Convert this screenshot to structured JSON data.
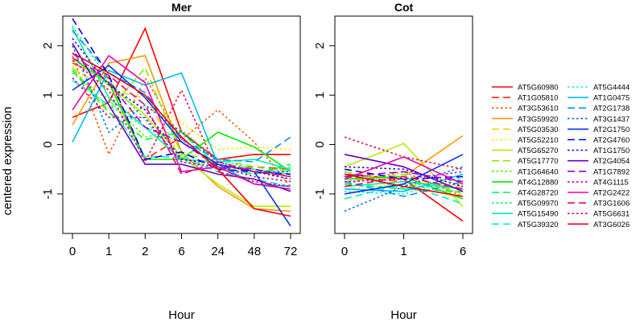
{
  "ylabel": "centered expression",
  "chart_data": [
    {
      "type": "line",
      "title": "Mer",
      "xlabel": "Hour",
      "ylabel": "centered expression",
      "categories": [
        "0",
        "1",
        "2",
        "6",
        "24",
        "48",
        "72"
      ],
      "ylim": [
        -1.8,
        2.6
      ],
      "yticks": [
        -1,
        0,
        1,
        2
      ],
      "grid": false,
      "series": [
        {
          "name": "AT5G60980",
          "color": "#ff0000",
          "dash": "solid",
          "values": [
            0.55,
            0.85,
            2.35,
            0.25,
            -0.3,
            -0.2,
            -0.2
          ]
        },
        {
          "name": "AT1G05810",
          "color": "#ff2a00",
          "dash": "longdash",
          "values": [
            1.65,
            1.35,
            -0.3,
            0.15,
            -0.5,
            -0.45,
            -0.5
          ]
        },
        {
          "name": "AT3G53610",
          "color": "#ff5500",
          "dash": "dotted",
          "values": [
            1.8,
            -0.2,
            1.35,
            0.1,
            0.7,
            0.05,
            -0.85
          ]
        },
        {
          "name": "AT3G59920",
          "color": "#ff9900",
          "dash": "solid",
          "values": [
            0.4,
            1.65,
            1.8,
            -0.15,
            -0.85,
            -1.3,
            -1.35
          ]
        },
        {
          "name": "AT5G03530",
          "color": "#ffcc00",
          "dash": "longdash",
          "values": [
            1.55,
            1.1,
            0.95,
            -0.3,
            -0.4,
            -0.55,
            -0.65
          ]
        },
        {
          "name": "AT5G52210",
          "color": "#eeee00",
          "dash": "dotted",
          "values": [
            1.6,
            0.55,
            0.75,
            0.45,
            -0.1,
            -0.05,
            -0.1
          ]
        },
        {
          "name": "AT5G65270",
          "color": "#b3ee00",
          "dash": "solid",
          "values": [
            1.75,
            1.2,
            0.6,
            -0.25,
            -0.8,
            -1.25,
            -1.25
          ]
        },
        {
          "name": "AT5G17770",
          "color": "#80ee00",
          "dash": "longdash",
          "values": [
            1.55,
            0.7,
            1.55,
            -0.2,
            -0.3,
            -0.45,
            -0.55
          ]
        },
        {
          "name": "AT1G64640",
          "color": "#55ee00",
          "dash": "dotted",
          "values": [
            1.45,
            0.9,
            0.15,
            0.3,
            -0.35,
            -0.5,
            -0.6
          ]
        },
        {
          "name": "AT4G12880",
          "color": "#00ee00",
          "dash": "solid",
          "values": [
            1.75,
            1.25,
            -0.3,
            -0.3,
            0.25,
            -0.05,
            -0.55
          ]
        },
        {
          "name": "AT4G28720",
          "color": "#00ee44",
          "dash": "longdash",
          "values": [
            1.5,
            0.65,
            0.1,
            0.25,
            -0.45,
            -0.6,
            -0.4
          ]
        },
        {
          "name": "AT5G09970",
          "color": "#00ee77",
          "dash": "dotted",
          "values": [
            2.4,
            1.3,
            0.5,
            -0.35,
            -0.5,
            -0.6,
            -0.45
          ]
        },
        {
          "name": "AT5G15490",
          "color": "#00eeaa",
          "dash": "solid",
          "values": [
            2.35,
            0.95,
            0.35,
            -0.3,
            -0.35,
            -0.3,
            -0.5
          ]
        },
        {
          "name": "AT5G39320",
          "color": "#00eecc",
          "dash": "longdash",
          "values": [
            1.3,
            0.8,
            -0.25,
            -0.25,
            -0.55,
            -0.7,
            -0.85
          ]
        },
        {
          "name": "AT5G4444",
          "color": "#00eeee",
          "dash": "dotted",
          "values": [
            2.05,
            0.8,
            0.35,
            0.05,
            -0.3,
            -0.5,
            -0.6
          ]
        },
        {
          "name": "AT1G0475",
          "color": "#00bbee",
          "dash": "solid",
          "values": [
            0.05,
            1.5,
            1.2,
            1.45,
            -0.4,
            -0.8,
            -0.85
          ]
        },
        {
          "name": "AT2G1738",
          "color": "#0099ee",
          "dash": "longdash",
          "values": [
            2.3,
            1.45,
            1.05,
            0.1,
            -0.3,
            -0.35,
            0.15
          ]
        },
        {
          "name": "AT3G1437",
          "color": "#0066ee",
          "dash": "dotted",
          "values": [
            2.0,
            0.25,
            0.8,
            0.25,
            -0.35,
            -0.55,
            -0.55
          ]
        },
        {
          "name": "AT2G1750",
          "color": "#0033ee",
          "dash": "solid",
          "values": [
            1.1,
            1.6,
            0.95,
            0.05,
            -0.4,
            -0.55,
            -1.65
          ]
        },
        {
          "name": "AT2G4760",
          "color": "#0000dd",
          "dash": "longdash",
          "values": [
            2.55,
            1.4,
            -0.3,
            -0.15,
            -0.5,
            -0.55,
            -0.6
          ]
        },
        {
          "name": "AT1G1750",
          "color": "#3300cc",
          "dash": "dotted",
          "values": [
            2.15,
            1.2,
            0.7,
            -0.3,
            -0.4,
            -0.55,
            -0.7
          ]
        },
        {
          "name": "AT2G4054",
          "color": "#6600cc",
          "dash": "solid",
          "values": [
            2.05,
            0.8,
            -0.4,
            -0.4,
            -0.6,
            -0.7,
            -0.95
          ]
        },
        {
          "name": "AT1G7892",
          "color": "#9900cc",
          "dash": "longdash",
          "values": [
            1.85,
            1.25,
            0.35,
            0.05,
            -0.45,
            -0.5,
            -0.65
          ]
        },
        {
          "name": "AT4G1115",
          "color": "#bb00bb",
          "dash": "dotted",
          "values": [
            1.35,
            0.55,
            0.55,
            -0.35,
            -0.45,
            -0.65,
            -0.75
          ]
        },
        {
          "name": "AT2G2422",
          "color": "#ee00aa",
          "dash": "solid",
          "values": [
            0.7,
            1.8,
            1.25,
            -0.55,
            -0.45,
            -0.8,
            -0.9
          ]
        },
        {
          "name": "AT3G1606",
          "color": "#ee0077",
          "dash": "longdash",
          "values": [
            1.75,
            1.4,
            0.8,
            -0.6,
            -0.35,
            -0.55,
            -0.65
          ]
        },
        {
          "name": "AT5G6631",
          "color": "#ee0044",
          "dash": "dotted",
          "values": [
            1.7,
            1.1,
            -0.35,
            1.1,
            -0.55,
            -0.75,
            -0.85
          ]
        },
        {
          "name": "AT3G6026",
          "color": "#ee0011",
          "dash": "solid",
          "values": [
            1.85,
            1.45,
            1.0,
            0.15,
            -0.5,
            -1.3,
            -1.45
          ]
        }
      ]
    },
    {
      "type": "line",
      "title": "Cot",
      "xlabel": "Hour",
      "categories": [
        "0",
        "1",
        "6"
      ],
      "ylim": [
        -1.8,
        2.6
      ],
      "yticks": [
        -1,
        0,
        1,
        2
      ],
      "grid": false,
      "series": [
        {
          "name": "AT5G60980",
          "color": "#ff0000",
          "dash": "solid",
          "values": [
            -0.6,
            -0.7,
            -1.55
          ]
        },
        {
          "name": "AT1G05810",
          "color": "#ff2a00",
          "dash": "longdash",
          "values": [
            -0.65,
            -0.75,
            -0.9
          ]
        },
        {
          "name": "AT3G53610",
          "color": "#ff5500",
          "dash": "dotted",
          "values": [
            -0.8,
            -0.55,
            -1.05
          ]
        },
        {
          "name": "AT3G59920",
          "color": "#ff9900",
          "dash": "solid",
          "values": [
            -0.7,
            -0.65,
            0.18
          ]
        },
        {
          "name": "AT5G03530",
          "color": "#ffcc00",
          "dash": "longdash",
          "values": [
            -0.55,
            -0.75,
            -0.85
          ]
        },
        {
          "name": "AT5G52210",
          "color": "#eeee00",
          "dash": "dotted",
          "values": [
            -0.9,
            -0.8,
            -1.1
          ]
        },
        {
          "name": "AT5G65270",
          "color": "#b3ee00",
          "dash": "solid",
          "values": [
            -0.45,
            0.02,
            -1.25
          ]
        },
        {
          "name": "AT5G17770",
          "color": "#80ee00",
          "dash": "longdash",
          "values": [
            -0.75,
            -0.6,
            -1.0
          ]
        },
        {
          "name": "AT1G64640",
          "color": "#55ee00",
          "dash": "dotted",
          "values": [
            -0.6,
            -0.85,
            -0.7
          ]
        },
        {
          "name": "AT4G12880",
          "color": "#00ee00",
          "dash": "solid",
          "values": [
            -0.7,
            -0.65,
            -1.1
          ]
        },
        {
          "name": "AT4G28720",
          "color": "#00ee44",
          "dash": "longdash",
          "values": [
            -0.8,
            -0.9,
            -0.95
          ]
        },
        {
          "name": "AT5G09970",
          "color": "#00ee77",
          "dash": "dotted",
          "values": [
            -0.55,
            -0.9,
            -0.8
          ]
        },
        {
          "name": "AT5G15490",
          "color": "#00eeaa",
          "dash": "solid",
          "values": [
            -0.85,
            -0.75,
            -0.9
          ]
        },
        {
          "name": "AT5G39320",
          "color": "#00eecc",
          "dash": "longdash",
          "values": [
            -1.1,
            -0.8,
            -1.2
          ]
        },
        {
          "name": "AT5G4444",
          "color": "#00eeee",
          "dash": "dotted",
          "values": [
            -0.95,
            -1.0,
            -0.65
          ]
        },
        {
          "name": "AT1G0475",
          "color": "#00bbee",
          "dash": "solid",
          "values": [
            -0.9,
            -0.95,
            -0.6
          ]
        },
        {
          "name": "AT2G1738",
          "color": "#0099ee",
          "dash": "longdash",
          "values": [
            -0.75,
            -1.05,
            -0.75
          ]
        },
        {
          "name": "AT3G1437",
          "color": "#0066ee",
          "dash": "dotted",
          "values": [
            -1.35,
            -0.85,
            -0.45
          ]
        },
        {
          "name": "AT2G1750",
          "color": "#0033ee",
          "dash": "solid",
          "values": [
            -1.0,
            -0.8,
            -0.2
          ]
        },
        {
          "name": "AT2G4760",
          "color": "#0000dd",
          "dash": "longdash",
          "values": [
            -0.5,
            -0.7,
            -0.65
          ]
        },
        {
          "name": "AT1G1750",
          "color": "#3300cc",
          "dash": "dotted",
          "values": [
            -0.45,
            -0.5,
            -0.85
          ]
        },
        {
          "name": "AT2G4054",
          "color": "#6600cc",
          "dash": "solid",
          "values": [
            -0.2,
            -0.45,
            -0.95
          ]
        },
        {
          "name": "AT1G7892",
          "color": "#9900cc",
          "dash": "longdash",
          "values": [
            -0.65,
            -0.55,
            -0.75
          ]
        },
        {
          "name": "AT4G1115",
          "color": "#bb00bb",
          "dash": "dotted",
          "values": [
            -0.75,
            -0.7,
            -0.55
          ]
        },
        {
          "name": "AT2G2422",
          "color": "#ee00aa",
          "dash": "solid",
          "values": [
            -0.7,
            -0.25,
            -0.8
          ]
        },
        {
          "name": "AT3G1606",
          "color": "#ee0077",
          "dash": "longdash",
          "values": [
            -0.85,
            -0.65,
            -0.9
          ]
        },
        {
          "name": "AT5G6631",
          "color": "#ee0044",
          "dash": "dotted",
          "values": [
            0.15,
            -0.25,
            -0.5
          ]
        },
        {
          "name": "AT3G6026",
          "color": "#ee0011",
          "dash": "solid",
          "values": [
            -0.6,
            -0.85,
            -1.05
          ]
        }
      ]
    }
  ]
}
